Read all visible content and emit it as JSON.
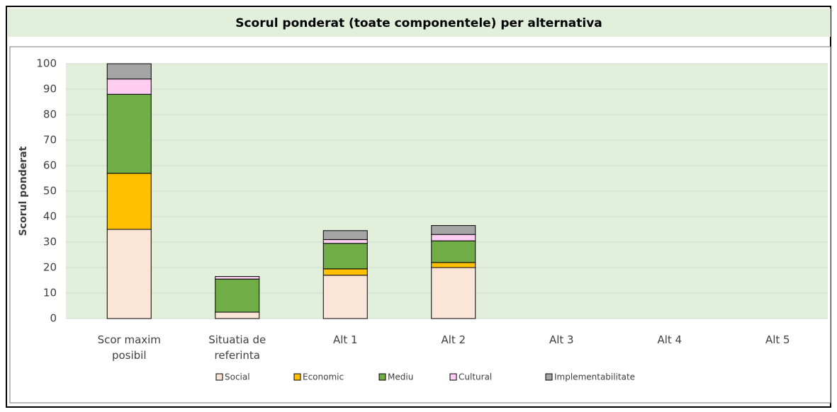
{
  "chart_data": {
    "type": "stacked_bar",
    "title": "Scorul ponderat  (toate componentele) per alternativa",
    "y_label": "Scorul ponderat",
    "categories": [
      "Scor maxim posibil",
      "Situatia de referinta",
      "Alt 1",
      "Alt 2",
      "Alt 3",
      "Alt 4",
      "Alt 5"
    ],
    "series": [
      {
        "name": "Social",
        "color": "#fbe5d6",
        "values": [
          35,
          2.5,
          17,
          20,
          null,
          null,
          null
        ]
      },
      {
        "name": "Economic",
        "color": "#ffc000",
        "values": [
          22,
          0,
          2.5,
          2,
          null,
          null,
          null
        ]
      },
      {
        "name": "Mediu",
        "color": "#70ad47",
        "values": [
          31,
          13,
          10,
          8.5,
          null,
          null,
          null
        ]
      },
      {
        "name": "Cultural",
        "color": "#ffccf2",
        "values": [
          6,
          1,
          1.5,
          2.5,
          null,
          null,
          null
        ]
      },
      {
        "name": "Implementabilitate",
        "color": "#a5a5a5",
        "values": [
          6,
          0,
          3.5,
          3.5,
          null,
          null,
          null
        ]
      }
    ],
    "ylim": [
      0,
      100
    ],
    "yticks": [
      0,
      10,
      20,
      30,
      40,
      50,
      60,
      70,
      80,
      90,
      100
    ],
    "grid": true,
    "legend": "bottom"
  }
}
